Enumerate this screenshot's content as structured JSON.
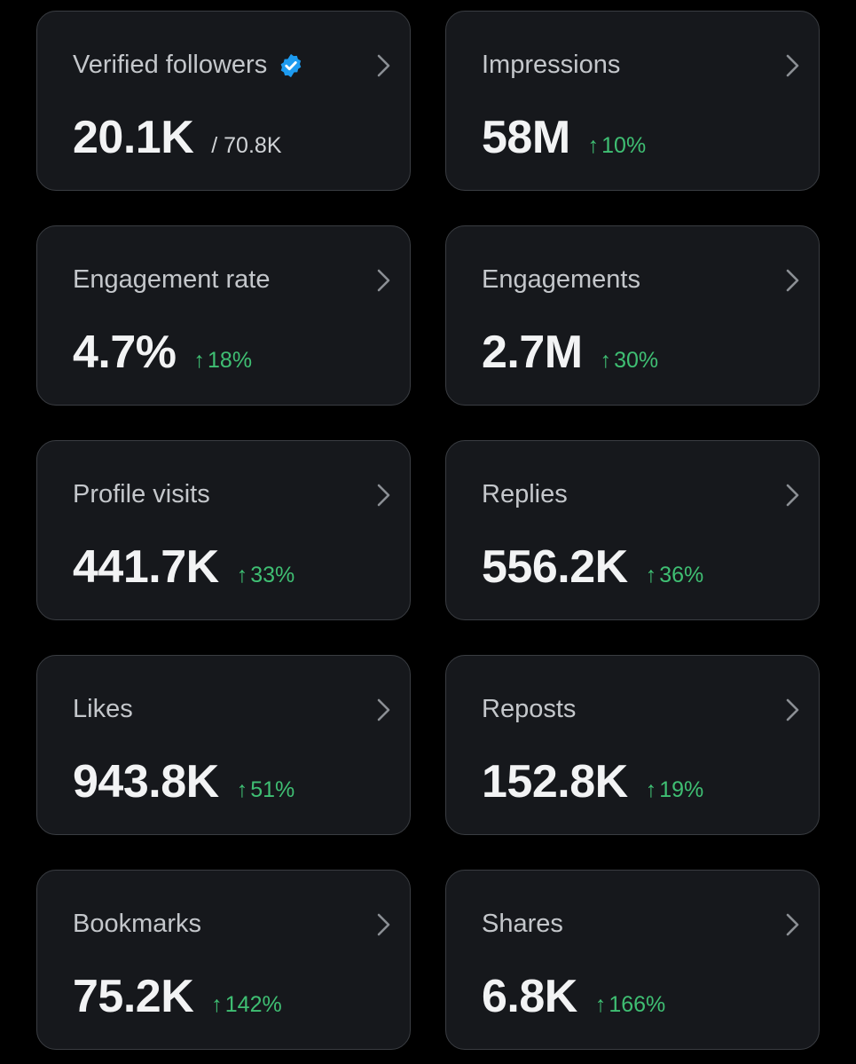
{
  "colors": {
    "background": "#000000",
    "card_background": "#16181c",
    "card_border": "#3a3d42",
    "label": "#c4c7cb",
    "value": "#f2f3f4",
    "positive_change": "#3fbf73",
    "verified_badge": "#1d9bf0"
  },
  "icons": {
    "chevron": "chevron-right-icon",
    "verified": "verified-badge-icon",
    "change": "arrow-up-icon"
  },
  "change_arrow": "↑",
  "cards": [
    {
      "label": "Verified followers",
      "value": "20.1K",
      "sub": "/ 70.8K"
    },
    {
      "label": "Impressions",
      "value": "58M",
      "change": "10%"
    },
    {
      "label": "Engagement rate",
      "value": "4.7%",
      "change": "18%"
    },
    {
      "label": "Engagements",
      "value": "2.7M",
      "change": "30%"
    },
    {
      "label": "Profile visits",
      "value": "441.7K",
      "change": "33%"
    },
    {
      "label": "Replies",
      "value": "556.2K",
      "change": "36%"
    },
    {
      "label": "Likes",
      "value": "943.8K",
      "change": "51%"
    },
    {
      "label": "Reposts",
      "value": "152.8K",
      "change": "19%"
    },
    {
      "label": "Bookmarks",
      "value": "75.2K",
      "change": "142%"
    },
    {
      "label": "Shares",
      "value": "6.8K",
      "change": "166%"
    }
  ]
}
